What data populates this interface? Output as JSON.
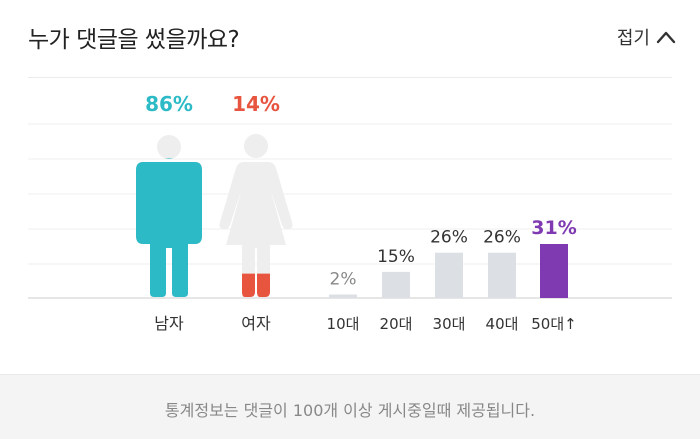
{
  "header": {
    "title": "누가 댓글을 썼을까요?",
    "collapse_label": "접기"
  },
  "chart_data": [
    {
      "type": "pictogram",
      "categories": [
        "남자",
        "여자"
      ],
      "values": [
        86,
        14
      ],
      "unit": "%",
      "colors": [
        "#2cbac7",
        "#e7553f"
      ],
      "ylim": [
        0,
        100
      ]
    },
    {
      "type": "bar",
      "categories": [
        "10대",
        "20대",
        "30대",
        "40대",
        "50대↑"
      ],
      "values": [
        2,
        15,
        26,
        26,
        31
      ],
      "unit": "%",
      "highlight_index": 4,
      "colors": {
        "bar": "#dcdfe3",
        "highlight": "#7f3ab2"
      },
      "ylim": [
        0,
        100
      ]
    }
  ],
  "footer": {
    "notice": "통계정보는 댓글이 100개 이상 게시중일때 제공됩니다."
  },
  "icons": {
    "collapse": "chevron-up-icon",
    "male": "male-figure-icon",
    "female": "female-figure-icon"
  }
}
